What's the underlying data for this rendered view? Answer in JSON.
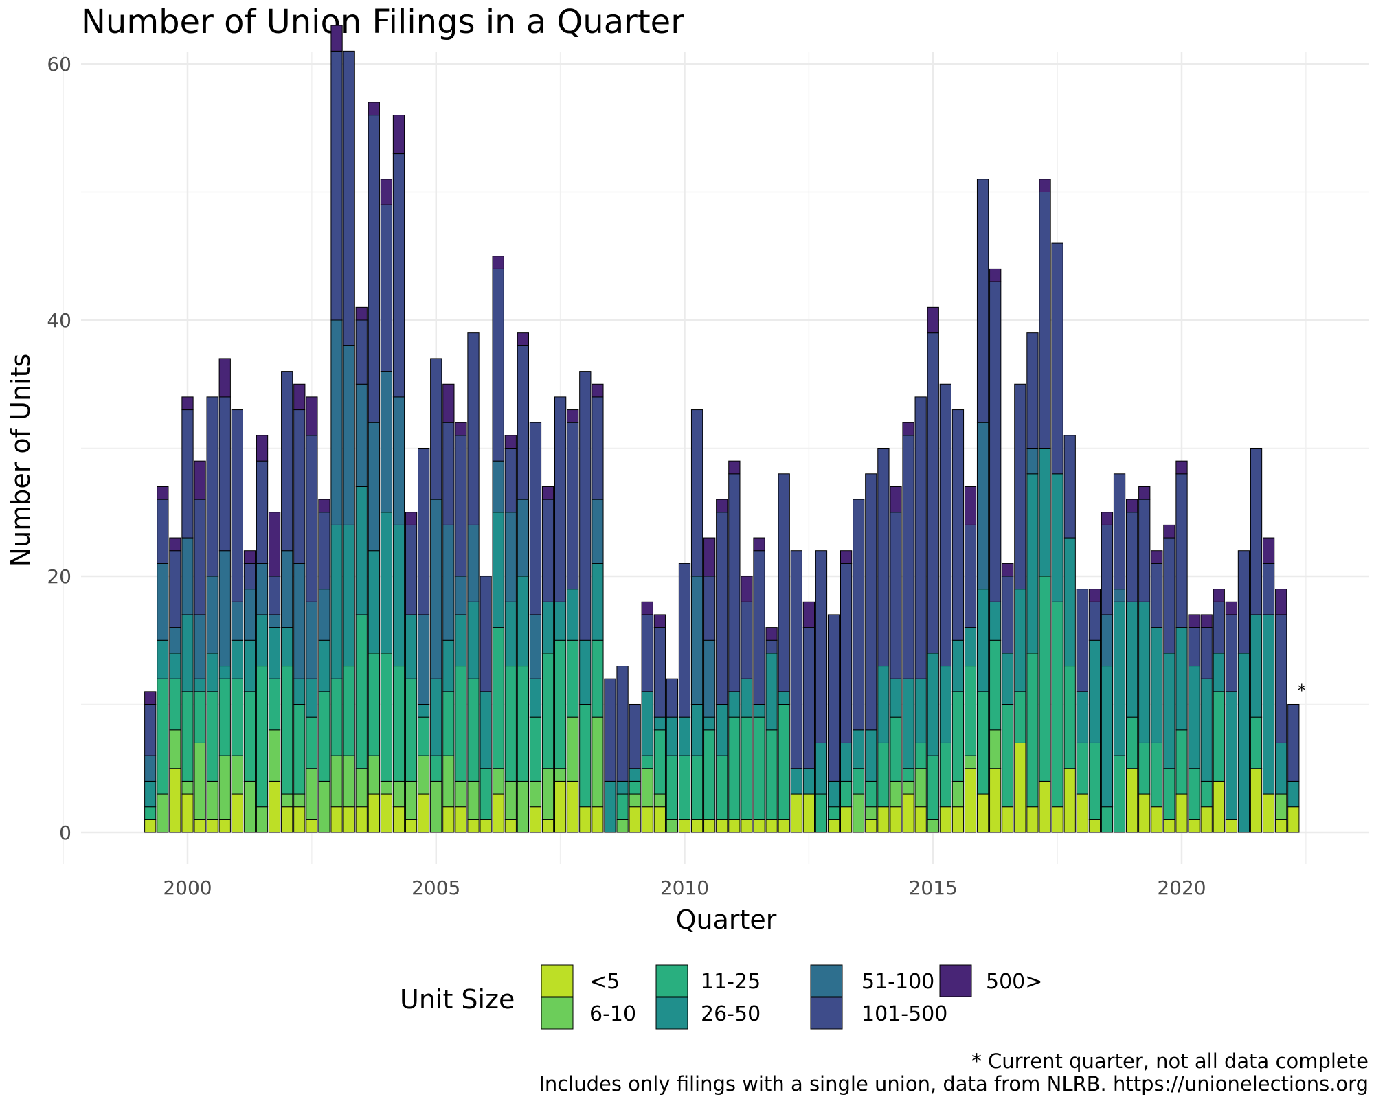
{
  "chart_data": {
    "type": "bar",
    "stacked": true,
    "title": "Number of Union Filings in a Quarter",
    "xlabel": "Quarter",
    "ylabel": "Number of Units",
    "ylim": [
      0,
      60
    ],
    "xlim": [
      1998.25,
      2023.5
    ],
    "y_ticks": [
      0,
      20,
      40,
      60
    ],
    "x_ticks": [
      2000,
      2005,
      2010,
      2015,
      2020
    ],
    "grid": true,
    "legend": {
      "title": "Unit Size",
      "placement": "bottom",
      "entries": [
        "<5",
        "6-10",
        "11-25",
        "26-50",
        "51-100",
        "101-500",
        "500>"
      ]
    },
    "colors": [
      "#bddf26",
      "#6ccd5a",
      "#29af7f",
      "#208f8c",
      "#2e6f8e",
      "#3e4c8a",
      "#482576"
    ],
    "annotation": {
      "text": "*",
      "x": 2022.25
    },
    "captions": [
      "* Current quarter, not all data complete",
      "Includes only filings with a single union, data from NLRB. https://unionelections.org"
    ],
    "x": [
      1999.25,
      1999.5,
      1999.75,
      2000.0,
      2000.25,
      2000.5,
      2000.75,
      2001.0,
      2001.25,
      2001.5,
      2001.75,
      2002.0,
      2002.25,
      2002.5,
      2002.75,
      2003.0,
      2003.25,
      2003.5,
      2003.75,
      2004.0,
      2004.25,
      2004.5,
      2004.75,
      2005.0,
      2005.25,
      2005.5,
      2005.75,
      2006.0,
      2006.25,
      2006.5,
      2006.75,
      2007.0,
      2007.25,
      2007.5,
      2007.75,
      2008.0,
      2008.25,
      2008.5,
      2008.75,
      2009.0,
      2009.25,
      2009.5,
      2009.75,
      2010.0,
      2010.25,
      2010.5,
      2010.75,
      2011.0,
      2011.25,
      2011.5,
      2011.75,
      2012.0,
      2012.25,
      2012.5,
      2012.75,
      2013.0,
      2013.25,
      2013.5,
      2013.75,
      2014.0,
      2014.25,
      2014.5,
      2014.75,
      2015.0,
      2015.25,
      2015.5,
      2015.75,
      2016.0,
      2016.25,
      2016.5,
      2016.75,
      2017.0,
      2017.25,
      2017.5,
      2017.75,
      2018.0,
      2018.25,
      2018.5,
      2018.75,
      2019.0,
      2019.25,
      2019.5,
      2019.75,
      2020.0,
      2020.25,
      2020.5,
      2020.75,
      2021.0,
      2021.25,
      2021.5,
      2021.75,
      2022.0,
      2022.25
    ],
    "series": [
      {
        "name": "<5",
        "values": [
          1,
          0,
          5,
          3,
          1,
          1,
          1,
          3,
          0,
          0,
          4,
          2,
          2,
          1,
          0,
          2,
          2,
          2,
          3,
          3,
          2,
          1,
          3,
          0,
          2,
          2,
          1,
          1,
          3,
          1,
          0,
          2,
          1,
          4,
          4,
          2,
          2,
          0,
          0,
          2,
          2,
          2,
          0,
          1,
          1,
          1,
          1,
          1,
          1,
          1,
          1,
          1,
          3,
          3,
          0,
          1,
          2,
          0,
          1,
          2,
          2,
          3,
          2,
          0,
          2,
          2,
          5,
          3,
          5,
          2,
          7,
          2,
          4,
          2,
          5,
          3,
          1,
          0,
          0,
          5,
          3,
          2,
          1,
          3,
          1,
          2,
          4,
          1,
          0,
          5,
          3,
          1,
          2
        ]
      },
      {
        "name": "6-10",
        "values": [
          0,
          3,
          3,
          1,
          6,
          3,
          5,
          3,
          4,
          2,
          4,
          1,
          1,
          4,
          4,
          4,
          4,
          3,
          3,
          1,
          2,
          3,
          3,
          4,
          4,
          2,
          3,
          0,
          2,
          3,
          4,
          2,
          4,
          1,
          5,
          0,
          7,
          0,
          1,
          1,
          3,
          1,
          1,
          0,
          0,
          0,
          0,
          0,
          0,
          0,
          0,
          0,
          0,
          0,
          0,
          0,
          0,
          3,
          1,
          0,
          2,
          1,
          3,
          1,
          0,
          2,
          1,
          0,
          3,
          0,
          0,
          0,
          0,
          0,
          0,
          0,
          0,
          0,
          0,
          0,
          0,
          0,
          0,
          0,
          0,
          0,
          0,
          0,
          0,
          0,
          0,
          2,
          0
        ]
      },
      {
        "name": "11-25",
        "values": [
          1,
          9,
          4,
          7,
          4,
          7,
          6,
          6,
          7,
          11,
          4,
          10,
          7,
          4,
          7,
          6,
          7,
          12,
          8,
          10,
          9,
          8,
          3,
          2,
          5,
          9,
          8,
          4,
          11,
          9,
          9,
          5,
          9,
          10,
          6,
          8,
          6,
          0,
          2,
          1,
          1,
          5,
          5,
          5,
          5,
          7,
          5,
          8,
          8,
          8,
          7,
          9,
          0,
          0,
          3,
          1,
          2,
          2,
          2,
          5,
          5,
          1,
          2,
          5,
          5,
          7,
          7,
          8,
          7,
          8,
          4,
          12,
          16,
          16,
          8,
          4,
          6,
          2,
          6,
          4,
          4,
          5,
          4,
          5,
          4,
          2,
          7,
          0,
          0,
          4,
          0,
          0,
          0
        ]
      },
      {
        "name": "26-50",
        "values": [
          2,
          3,
          2,
          6,
          1,
          3,
          1,
          3,
          4,
          4,
          4,
          3,
          2,
          3,
          4,
          12,
          11,
          10,
          8,
          11,
          11,
          5,
          1,
          6,
          4,
          4,
          6,
          6,
          9,
          5,
          7,
          3,
          4,
          3,
          4,
          5,
          6,
          4,
          1,
          1,
          5,
          1,
          3,
          3,
          4,
          1,
          4,
          2,
          3,
          1,
          6,
          1,
          2,
          2,
          4,
          2,
          3,
          3,
          4,
          6,
          3,
          7,
          5,
          8,
          6,
          4,
          3,
          8,
          3,
          4,
          8,
          14,
          10,
          10,
          10,
          4,
          8,
          11,
          12,
          9,
          11,
          9,
          9,
          8,
          8,
          8,
          3,
          10,
          14,
          8,
          14,
          4,
          2
        ]
      },
      {
        "name": "51-100",
        "values": [
          2,
          6,
          2,
          6,
          5,
          6,
          9,
          3,
          4,
          4,
          1,
          6,
          9,
          6,
          4,
          16,
          14,
          8,
          10,
          11,
          10,
          0,
          7,
          14,
          9,
          3,
          6,
          0,
          4,
          7,
          6,
          5,
          0,
          0,
          0,
          0,
          5,
          0,
          0,
          0,
          0,
          0,
          0,
          0,
          10,
          6,
          0,
          0,
          0,
          0,
          0,
          0,
          0,
          0,
          0,
          0,
          0,
          0,
          0,
          0,
          0,
          0,
          0,
          0,
          0,
          0,
          0,
          13,
          0,
          0,
          0,
          2,
          0,
          0,
          0,
          0,
          0,
          4,
          1,
          0,
          0,
          0,
          0,
          0,
          0,
          0,
          0,
          0,
          0,
          0,
          0,
          0,
          0
        ]
      },
      {
        "name": "101-500",
        "values": [
          4,
          5,
          6,
          10,
          9,
          14,
          12,
          15,
          2,
          8,
          3,
          14,
          12,
          13,
          6,
          21,
          23,
          5,
          24,
          13,
          19,
          7,
          13,
          11,
          8,
          11,
          15,
          9,
          15,
          5,
          12,
          15,
          8,
          16,
          13,
          21,
          8,
          8,
          9,
          5,
          6,
          7,
          3,
          12,
          13,
          5,
          15,
          17,
          6,
          12,
          1,
          17,
          17,
          11,
          15,
          13,
          14,
          18,
          20,
          17,
          13,
          19,
          22,
          25,
          22,
          18,
          8,
          19,
          25,
          6,
          16,
          9,
          20,
          18,
          8,
          8,
          3,
          7,
          9,
          7,
          8,
          5,
          9,
          12,
          3,
          4,
          4,
          6,
          8,
          13,
          4,
          10,
          6
        ]
      },
      {
        "name": "500>",
        "values": [
          1,
          1,
          1,
          1,
          3,
          0,
          3,
          0,
          1,
          2,
          5,
          0,
          2,
          3,
          1,
          2,
          0,
          1,
          1,
          2,
          3,
          1,
          0,
          0,
          3,
          1,
          0,
          0,
          1,
          1,
          1,
          0,
          1,
          0,
          1,
          0,
          1,
          0,
          0,
          0,
          1,
          1,
          0,
          0,
          0,
          3,
          1,
          1,
          2,
          1,
          1,
          0,
          0,
          2,
          0,
          0,
          1,
          0,
          0,
          0,
          2,
          1,
          0,
          2,
          0,
          0,
          3,
          0,
          1,
          1,
          0,
          0,
          1,
          0,
          0,
          0,
          1,
          1,
          0,
          1,
          1,
          1,
          1,
          1,
          1,
          1,
          1,
          1,
          0,
          0,
          2,
          2,
          0
        ]
      }
    ]
  }
}
